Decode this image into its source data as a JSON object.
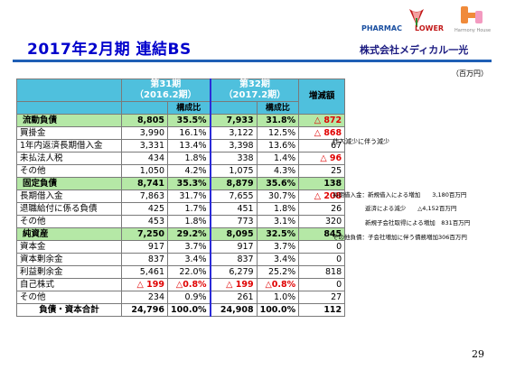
{
  "title": "2017年2月期 連結BS",
  "logos": {
    "pharmac": "PHARMAC",
    "lower": "LOWER",
    "harmony": "Harmony House",
    "company": "株式会社メディカル一光"
  },
  "unit": "（百万円）",
  "page_number": "29",
  "columns": {
    "p31": "第31期",
    "p31_sub": "（2016.2期）",
    "p32": "第32期",
    "p32_sub": "（2017.2期）",
    "ratio": "構成比",
    "diff": "増減額"
  },
  "rows": [
    {
      "label": "流動負債",
      "a": "8,805",
      "ap": "35.5%",
      "b": "7,933",
      "bp": "31.8%",
      "d": "△ 872",
      "neg": true,
      "section": true
    },
    {
      "label": "買掛金",
      "a": "3,990",
      "ap": "16.1%",
      "b": "3,122",
      "bp": "12.5%",
      "d": "△ 868",
      "neg": true
    },
    {
      "label": "1年内返済長期借入金",
      "a": "3,331",
      "ap": "13.4%",
      "b": "3,398",
      "bp": "13.6%",
      "d": "67"
    },
    {
      "label": "未払法人税",
      "a": "434",
      "ap": "1.8%",
      "b": "338",
      "bp": "1.4%",
      "d": "△ 96",
      "neg": true
    },
    {
      "label": "その他",
      "a": "1,050",
      "ap": "4.2%",
      "b": "1,075",
      "bp": "4.3%",
      "d": "25"
    },
    {
      "label": "固定負債",
      "a": "8,741",
      "ap": "35.3%",
      "b": "8,879",
      "bp": "35.6%",
      "d": "138",
      "section": true
    },
    {
      "label": "長期借入金",
      "a": "7,863",
      "ap": "31.7%",
      "b": "7,655",
      "bp": "30.7%",
      "d": "△ 208",
      "neg": true
    },
    {
      "label": "退職給付に係る負債",
      "a": "425",
      "ap": "1.7%",
      "b": "451",
      "bp": "1.8%",
      "d": "26"
    },
    {
      "label": "その他",
      "a": "453",
      "ap": "1.8%",
      "b": "773",
      "bp": "3.1%",
      "d": "320"
    },
    {
      "label": "純資産",
      "a": "7,250",
      "ap": "29.2%",
      "b": "8,095",
      "bp": "32.5%",
      "d": "845",
      "section": true
    },
    {
      "label": "資本金",
      "a": "917",
      "ap": "3.7%",
      "b": "917",
      "bp": "3.7%",
      "d": "0"
    },
    {
      "label": "資本剰余金",
      "a": "837",
      "ap": "3.4%",
      "b": "837",
      "bp": "3.4%",
      "d": "0"
    },
    {
      "label": "利益剰余金",
      "a": "5,461",
      "ap": "22.0%",
      "b": "6,279",
      "bp": "25.2%",
      "d": "818"
    },
    {
      "label": "自己株式",
      "a": "△ 199",
      "ap": "△0.8%",
      "b": "△ 199",
      "bp": "△0.8%",
      "d": "0",
      "negvals": true
    },
    {
      "label": "その他",
      "a": "234",
      "ap": "0.9%",
      "b": "261",
      "bp": "1.0%",
      "d": "27"
    },
    {
      "label": "負債・資本合計",
      "a": "24,796",
      "ap": "100.0%",
      "b": "24,908",
      "bp": "100.0%",
      "d": "112",
      "total": true
    }
  ],
  "notes": {
    "n1": "仕入減少に伴う減少",
    "n2": "長期借入金：新規借入による増加　　3,180百万円",
    "n3": "返済による減少　　△4,152百万円",
    "n4": "新規子会社取得による増加　831百万円",
    "n5": "その他負債：子会社増加に伴う債務増加306百万円"
  }
}
